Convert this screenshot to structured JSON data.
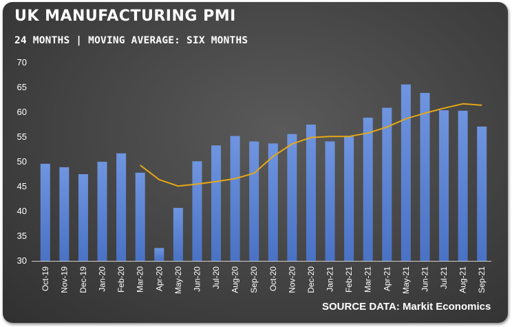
{
  "title": "UK MANUFACTURING PMI",
  "subtitle": "24 MONTHS | MOVING AVERAGE: SIX MONTHS",
  "source": "SOURCE DATA: Markit Economics",
  "colors": {
    "bar": "#4a72c4",
    "bar_highlight": "#6f95e0",
    "line": "#e6a817",
    "axis": "#cfcfcf",
    "text": "#ffffff"
  },
  "chart_data": {
    "type": "bar",
    "title": "UK MANUFACTURING PMI",
    "subtitle": "24 MONTHS | MOVING AVERAGE: SIX MONTHS",
    "xlabel": "",
    "ylabel": "",
    "ylim": [
      30,
      70
    ],
    "yticks": [
      30,
      35,
      40,
      45,
      50,
      55,
      60,
      65,
      70
    ],
    "grid": false,
    "legend": "none",
    "categories": [
      "Oct-19",
      "Nov-19",
      "Dec-19",
      "Jan-20",
      "Feb-20",
      "Mar-20",
      "Apr-20",
      "May-20",
      "Jun-20",
      "Jul-20",
      "Aug-20",
      "Sep-20",
      "Oct-20",
      "Nov-20",
      "Dec-20",
      "Jan-21",
      "Feb-21",
      "Mar-21",
      "Apr-21",
      "May-21",
      "Jun-21",
      "Jul-21",
      "Aug-21",
      "Sep-21"
    ],
    "series": [
      {
        "type": "bar",
        "values": [
          49.6,
          48.9,
          47.5,
          50.0,
          51.7,
          47.8,
          32.6,
          40.7,
          50.1,
          53.3,
          55.2,
          54.1,
          53.7,
          55.6,
          57.5,
          54.1,
          55.1,
          58.9,
          60.9,
          65.6,
          63.9,
          60.4,
          60.3,
          57.1
        ]
      },
      {
        "type": "line",
        "values": [
          null,
          null,
          null,
          null,
          null,
          49.3,
          46.4,
          45.1,
          45.5,
          46.0,
          46.6,
          47.7,
          51.1,
          53.6,
          54.9,
          55.1,
          55.1,
          55.8,
          57.0,
          58.7,
          59.8,
          60.8,
          61.7,
          61.4
        ]
      }
    ]
  }
}
